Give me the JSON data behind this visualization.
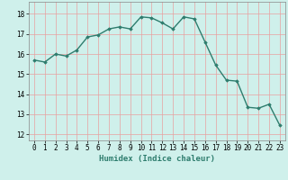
{
  "x": [
    0,
    1,
    2,
    3,
    4,
    5,
    6,
    7,
    8,
    9,
    10,
    11,
    12,
    13,
    14,
    15,
    16,
    17,
    18,
    19,
    20,
    21,
    22,
    23
  ],
  "y": [
    15.7,
    15.6,
    16.0,
    15.9,
    16.2,
    16.85,
    16.95,
    17.25,
    17.35,
    17.25,
    17.85,
    17.8,
    17.55,
    17.25,
    17.85,
    17.75,
    16.6,
    15.45,
    14.7,
    14.65,
    13.35,
    13.3,
    13.5,
    12.45
  ],
  "line_color": "#2e7d6e",
  "marker": "D",
  "marker_size": 1.8,
  "line_width": 1.0,
  "bg_color": "#cff0eb",
  "grid_color": "#e8a0a0",
  "xlabel": "Humidex (Indice chaleur)",
  "xlabel_fontsize": 6.5,
  "yticks": [
    12,
    13,
    14,
    15,
    16,
    17,
    18
  ],
  "ylim": [
    11.7,
    18.6
  ],
  "xlim": [
    -0.5,
    23.5
  ],
  "xtick_labels": [
    "0",
    "1",
    "2",
    "3",
    "4",
    "5",
    "6",
    "7",
    "8",
    "9",
    "10",
    "11",
    "12",
    "13",
    "14",
    "15",
    "16",
    "17",
    "18",
    "19",
    "20",
    "21",
    "22",
    "23"
  ],
  "tick_fontsize": 5.5
}
